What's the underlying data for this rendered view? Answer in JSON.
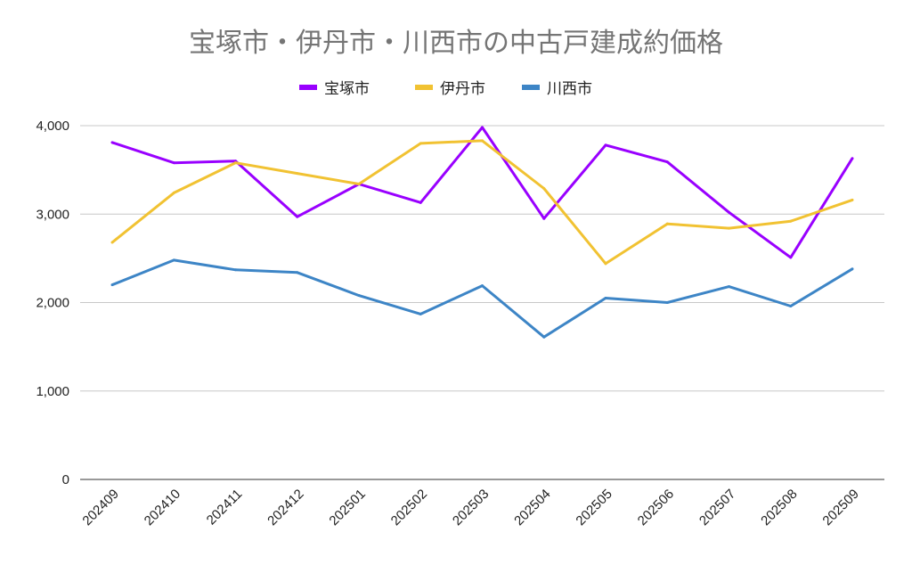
{
  "chart_data": {
    "type": "line",
    "title": "宝塚市・伊丹市・川西市の中古戸建成約価格",
    "xlabel": "",
    "ylabel": "",
    "ylim": [
      0,
      4000
    ],
    "yticks": [
      0,
      1000,
      2000,
      3000,
      4000
    ],
    "ytick_labels": [
      "0",
      "1,000",
      "2,000",
      "3,000",
      "4,000"
    ],
    "grid": true,
    "legend_position": "top-center",
    "categories": [
      "202409",
      "202410",
      "202411",
      "202412",
      "202501",
      "202502",
      "202503",
      "202504",
      "202505",
      "202506",
      "202507",
      "202508",
      "202509"
    ],
    "series": [
      {
        "name": "宝塚市",
        "color": "#9900ff",
        "values": [
          3810,
          3580,
          3600,
          2970,
          3340,
          3130,
          3980,
          2950,
          3780,
          3590,
          3020,
          2510,
          3630
        ]
      },
      {
        "name": "伊丹市",
        "color": "#f1c232",
        "values": [
          2680,
          3240,
          3580,
          3460,
          3340,
          3800,
          3830,
          3290,
          2440,
          2890,
          2840,
          2920,
          3160
        ]
      },
      {
        "name": "川西市",
        "color": "#3d85c6",
        "values": [
          2200,
          2480,
          2370,
          2340,
          2080,
          1870,
          2190,
          1610,
          2050,
          2000,
          2180,
          1960,
          2380
        ]
      }
    ]
  }
}
